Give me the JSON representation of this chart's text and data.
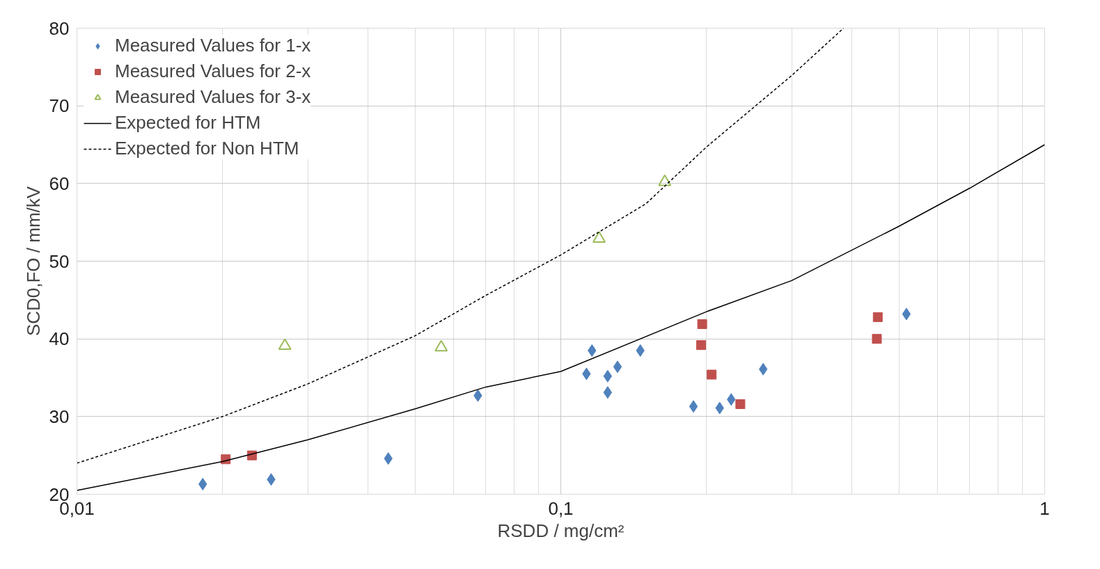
{
  "chart_data": {
    "type": "scatter",
    "xlabel": "RSDD / mg/cm²",
    "ylabel": "SCD0,FO / mm/kV",
    "log": "x",
    "xlim": [
      0.01,
      1
    ],
    "xticks": [
      {
        "value": 0.01,
        "label": "0,01"
      },
      {
        "value": 0.1,
        "label": "0,1"
      },
      1
    ],
    "ylim": [
      20,
      80
    ],
    "yticks": [
      20,
      30,
      40,
      50,
      60,
      70,
      80
    ],
    "grid": true,
    "legend": "top left",
    "series": [
      {
        "name": "Measured Values for 1-x",
        "color": "#4f81bd",
        "marker": "diamond",
        "x": [
          0.0182,
          0.0252,
          0.044,
          0.0674,
          0.113,
          0.116,
          0.125,
          0.125,
          0.131,
          0.146,
          0.188,
          0.213,
          0.225,
          0.262,
          0.518
        ],
        "values": [
          21.3,
          21.9,
          24.6,
          32.7,
          35.5,
          38.5,
          35.2,
          33.1,
          36.4,
          38.5,
          31.3,
          31.1,
          32.2,
          36.1,
          43.2
        ]
      },
      {
        "name": "Measured Values for 2-x",
        "color": "#c0504d",
        "marker": "square",
        "x": [
          0.0203,
          0.023,
          0.196,
          0.195,
          0.205,
          0.235,
          0.452,
          0.45
        ],
        "values": [
          24.5,
          25.0,
          41.9,
          39.2,
          35.4,
          31.6,
          42.8,
          40.0
        ]
      },
      {
        "name": "Measured Values for 3-x",
        "color": "#9bbb59",
        "marker": "triangle",
        "x": [
          0.0269,
          0.0566,
          0.12,
          0.164
        ],
        "values": [
          39.1,
          38.9,
          52.9,
          60.2
        ]
      },
      {
        "name": "Expected for HTM",
        "type": "line",
        "color": "#000000",
        "line_style": "solid",
        "x": [
          0.01,
          0.02,
          0.03,
          0.05,
          0.07,
          0.1,
          0.2,
          0.3,
          0.5,
          0.7,
          1
        ],
        "values": [
          20.5,
          24.2,
          27.0,
          31.0,
          33.8,
          35.8,
          43.5,
          47.5,
          54.5,
          59.4,
          65.0
        ]
      },
      {
        "name": "Expected for Non HTM",
        "type": "line",
        "color": "#000000",
        "line_style": "dashed",
        "x": [
          0.01,
          0.02,
          0.03,
          0.05,
          0.07,
          0.1,
          0.15,
          0.2,
          0.3,
          0.384
        ],
        "values": [
          24.0,
          30.0,
          34.2,
          40.4,
          45.6,
          50.8,
          57.4,
          64.7,
          73.9,
          80
        ]
      }
    ]
  }
}
